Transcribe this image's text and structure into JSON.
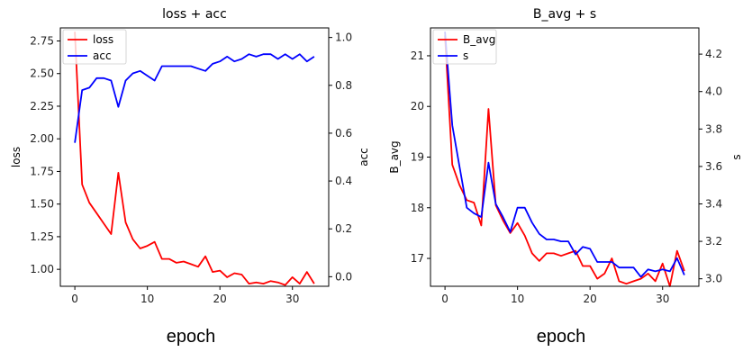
{
  "chart_data": [
    {
      "type": "line",
      "title": "loss + acc",
      "xlabel": "epoch",
      "ylabel": "loss",
      "y2label": "acc",
      "xlim": [
        -2,
        35
      ],
      "ylim": [
        0.87,
        2.85
      ],
      "y2lim": [
        -0.04,
        1.04
      ],
      "xticks": [
        0,
        10,
        20,
        30
      ],
      "yticks": [
        "1.00",
        "1.25",
        "1.50",
        "1.75",
        "2.00",
        "2.25",
        "2.50",
        "2.75"
      ],
      "y2ticks": [
        "0.0",
        "0.2",
        "0.4",
        "0.6",
        "0.8",
        "1.0"
      ],
      "legend_position": "top-left",
      "grid": false,
      "x": [
        0,
        1,
        2,
        3,
        4,
        5,
        6,
        7,
        8,
        9,
        10,
        11,
        12,
        13,
        14,
        15,
        16,
        17,
        18,
        19,
        20,
        21,
        22,
        23,
        24,
        25,
        26,
        27,
        28,
        29,
        30,
        31,
        32,
        33
      ],
      "series": [
        {
          "name": "loss",
          "axis": "left",
          "color": "#ff0000",
          "values": [
            2.82,
            1.65,
            1.51,
            1.43,
            1.35,
            1.27,
            1.74,
            1.36,
            1.23,
            1.16,
            1.18,
            1.21,
            1.08,
            1.08,
            1.05,
            1.06,
            1.04,
            1.02,
            1.1,
            0.98,
            0.99,
            0.94,
            0.97,
            0.96,
            0.89,
            0.9,
            0.89,
            0.91,
            0.9,
            0.88,
            0.94,
            0.89,
            0.98,
            0.89
          ]
        },
        {
          "name": "acc",
          "axis": "right",
          "color": "#0000ff",
          "values": [
            0.56,
            0.78,
            0.79,
            0.83,
            0.83,
            0.82,
            0.71,
            0.82,
            0.85,
            0.86,
            0.84,
            0.82,
            0.88,
            0.88,
            0.88,
            0.88,
            0.88,
            0.87,
            0.86,
            0.89,
            0.9,
            0.92,
            0.9,
            0.91,
            0.93,
            0.92,
            0.93,
            0.93,
            0.91,
            0.93,
            0.91,
            0.93,
            0.9,
            0.92
          ]
        }
      ]
    },
    {
      "type": "line",
      "title": "B_avg + s",
      "xlabel": "epoch",
      "ylabel": "B_avg",
      "y2label": "s",
      "xlim": [
        -2,
        35
      ],
      "ylim": [
        16.45,
        21.55
      ],
      "y2lim": [
        2.96,
        4.34
      ],
      "xticks": [
        0,
        10,
        20,
        30
      ],
      "yticks": [
        "17",
        "18",
        "19",
        "20",
        "21"
      ],
      "y2ticks": [
        "3.0",
        "3.2",
        "3.4",
        "3.6",
        "3.8",
        "4.0",
        "4.2"
      ],
      "legend_position": "top-left",
      "grid": false,
      "x": [
        0,
        1,
        2,
        3,
        4,
        5,
        6,
        7,
        8,
        9,
        10,
        11,
        12,
        13,
        14,
        15,
        16,
        17,
        18,
        19,
        20,
        21,
        22,
        23,
        24,
        25,
        26,
        27,
        28,
        29,
        30,
        31,
        32,
        33
      ],
      "series": [
        {
          "name": "B_avg",
          "axis": "left",
          "color": "#ff0000",
          "values": [
            21.4,
            18.85,
            18.45,
            18.15,
            18.1,
            17.65,
            19.95,
            18.05,
            17.75,
            17.5,
            17.7,
            17.45,
            17.1,
            16.95,
            17.1,
            17.1,
            17.05,
            17.1,
            17.15,
            16.85,
            16.85,
            16.6,
            16.7,
            17.0,
            16.55,
            16.5,
            16.55,
            16.6,
            16.7,
            16.55,
            16.9,
            16.45,
            17.15,
            16.75
          ]
        },
        {
          "name": "s",
          "axis": "right",
          "color": "#0000ff",
          "values": [
            4.32,
            3.82,
            3.6,
            3.38,
            3.35,
            3.33,
            3.62,
            3.4,
            3.33,
            3.25,
            3.38,
            3.38,
            3.3,
            3.24,
            3.21,
            3.21,
            3.2,
            3.2,
            3.13,
            3.17,
            3.16,
            3.09,
            3.09,
            3.09,
            3.06,
            3.06,
            3.06,
            3.01,
            3.05,
            3.04,
            3.05,
            3.04,
            3.11,
            3.02
          ]
        }
      ]
    }
  ]
}
